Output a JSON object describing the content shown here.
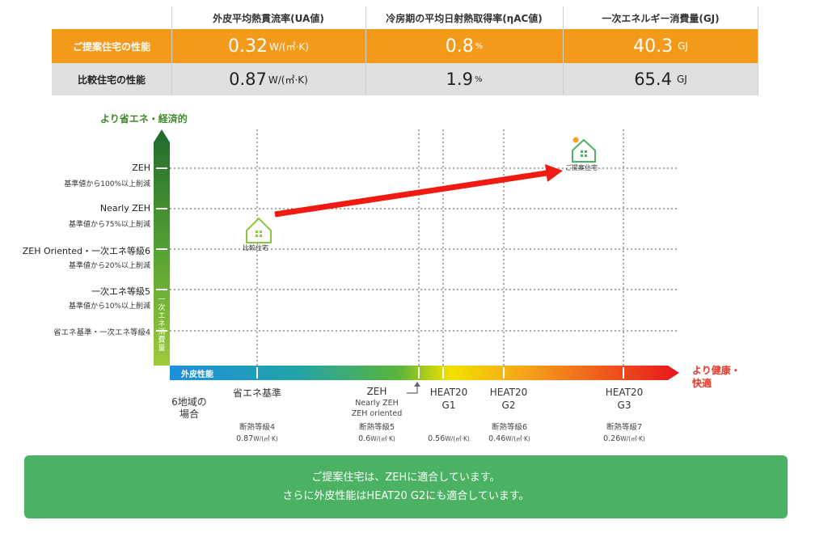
{
  "table": {
    "headers": [
      "外皮平均熱貫流率(UA値)",
      "冷房期の平均日射熱取得率(ηAC値)",
      "一次エネルギー消費量(GJ)"
    ],
    "proposed": {
      "label": "ご提案住宅の性能",
      "ua": "0.32",
      "ua_unit": "W/(㎡·K)",
      "eta": "0.8",
      "eta_unit": "%",
      "energy": "40.3",
      "energy_unit": "GJ"
    },
    "comparison": {
      "label": "比較住宅の性能",
      "ua": "0.87",
      "ua_unit": "W/(㎡·K)",
      "eta": "1.9",
      "eta_unit": "%",
      "energy": "65.4",
      "energy_unit": "GJ"
    }
  },
  "y_axis": {
    "title": "より省エネ・経済的",
    "bar_label": "一次エネ消費量",
    "levels": [
      {
        "name": "ZEH",
        "desc": "基準値から100%以上削減"
      },
      {
        "name": "Nearly ZEH",
        "desc": "基準値から75%以上削減"
      },
      {
        "name": "ZEH Oriented・一次エネ等級6",
        "desc": "基準値から20%以上削減"
      },
      {
        "name": "一次エネ等級5",
        "desc": "基準値から10%以上削減"
      },
      {
        "name": "省エネ基準・一次エネ等級4",
        "desc": ""
      }
    ]
  },
  "x_axis": {
    "title": "より健康・快適",
    "bar_label": "外皮性能",
    "region_label": [
      "6地域の",
      "場合"
    ],
    "levels": [
      {
        "name": "省エネ基準",
        "grade": "断熱等級4",
        "value": "0.87",
        "unit": "W/(㎡·K)"
      },
      {
        "name": "ZEH",
        "sub1": "Nearly ZEH",
        "sub2": "ZEH oriented",
        "grade": "断熱等級5",
        "value": "0.6",
        "unit": "W/(㎡·K)"
      },
      {
        "name1": "HEAT20",
        "name2": "G1",
        "grade": "",
        "value": "0.56",
        "unit": "W/(㎡·K)"
      },
      {
        "name1": "HEAT20",
        "name2": "G2",
        "grade": "断熱等級6",
        "value": "0.46",
        "unit": "W/(㎡·K)"
      },
      {
        "name1": "HEAT20",
        "name2": "G3",
        "grade": "断熱等級7",
        "value": "0.26",
        "unit": "W/(㎡·K)"
      }
    ]
  },
  "markers": {
    "comparison_label": "比較住宅",
    "proposed_label": "ご提案住宅"
  },
  "banner": {
    "line1": "ご提案住宅は、ZEHに適合しています。",
    "line2": "さらに外皮性能はHEAT20 G2にも適合しています。"
  },
  "colors": {
    "orange": "#f39a1b",
    "grey": "#e0e0e0",
    "green": "#4cb263",
    "arrow_red": "#f01a12",
    "house_green": "#8cc63f"
  }
}
